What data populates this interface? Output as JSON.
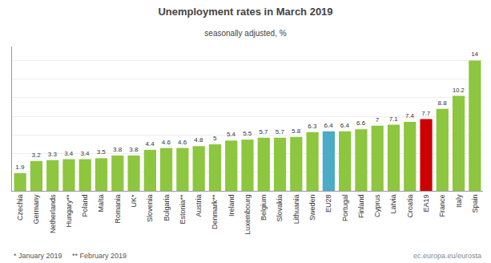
{
  "chart_data": {
    "type": "bar",
    "title": "Unemployment rates in March 2019",
    "subtitle": "seasonally adjusted, %",
    "annotations": [
      "* January 2019     ** February 2019",
      "ec.europa.eu/eurosta"
    ],
    "categories": [
      "Czechia",
      "Germany",
      "Netherlands",
      "Hungary**",
      "Poland",
      "Malta",
      "Romania",
      "UK*",
      "Slovenia",
      "Bulgaria",
      "Estonia**",
      "Austria",
      "Denmark**",
      "Ireland",
      "Luxembourg",
      "Belgium",
      "Slovakia",
      "Lithuania",
      "Sweden",
      "EU28",
      "Portugal",
      "Finland",
      "Cyprus",
      "Latvia",
      "Croatia",
      "EA19",
      "France",
      "Italy",
      "Spain"
    ],
    "values": [
      1.9,
      3.2,
      3.3,
      3.4,
      3.4,
      3.5,
      3.8,
      3.8,
      4.4,
      4.6,
      4.6,
      4.8,
      5.0,
      5.4,
      5.5,
      5.7,
      5.7,
      5.8,
      6.3,
      6.4,
      6.4,
      6.6,
      7.0,
      7.1,
      7.4,
      7.7,
      8.8,
      10.2,
      14.0
    ],
    "colors": [
      "#8DC63F",
      "#8DC63F",
      "#8DC63F",
      "#8DC63F",
      "#8DC63F",
      "#8DC63F",
      "#8DC63F",
      "#8DC63F",
      "#8DC63F",
      "#8DC63F",
      "#8DC63F",
      "#8DC63F",
      "#8DC63F",
      "#8DC63F",
      "#8DC63F",
      "#8DC63F",
      "#8DC63F",
      "#8DC63F",
      "#8DC63F",
      "#4BACC6",
      "#8DC63F",
      "#8DC63F",
      "#8DC63F",
      "#8DC63F",
      "#8DC63F",
      "#CC0000",
      "#8DC63F",
      "#8DC63F",
      "#8DC63F"
    ],
    "ylim": [
      0,
      15.5
    ],
    "yticks": [
      2,
      4,
      6,
      8,
      10,
      12,
      14
    ],
    "grid": true,
    "data_labels": true,
    "tick_labels": "x"
  }
}
